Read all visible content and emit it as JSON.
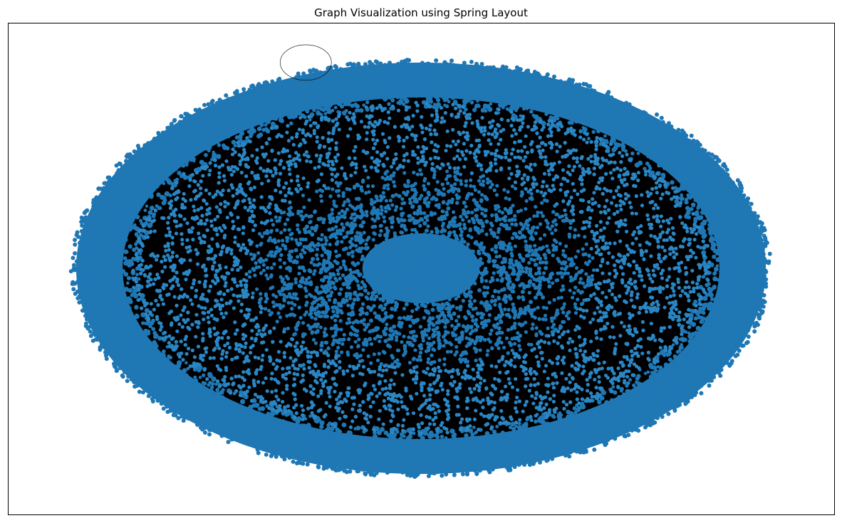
{
  "figure": {
    "title": "Graph Visualization using Spring Layout"
  },
  "graph": {
    "layout": "spring",
    "node_color": "#1f77b4",
    "edge_color": "#000000",
    "background_color": "#ffffff",
    "has_self_loop": true
  }
}
